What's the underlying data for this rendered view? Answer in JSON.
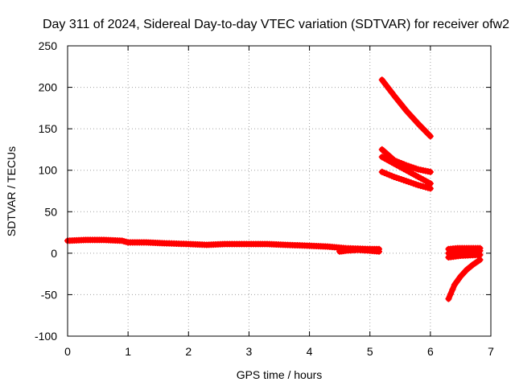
{
  "chart_data": {
    "type": "scatter",
    "title": "Day 311 of 2024, Sidereal Day-to-day VTEC variation (SDTVAR) for receiver ofw2",
    "xlabel": "GPS time / hours",
    "ylabel": "SDTVAR / TECUs",
    "xlim": [
      0,
      7
    ],
    "ylim": [
      -100,
      250
    ],
    "xticks": [
      0,
      1,
      2,
      3,
      4,
      5,
      6,
      7
    ],
    "yticks": [
      -100,
      -50,
      0,
      50,
      100,
      150,
      200,
      250
    ],
    "grid": true,
    "marker": "plus",
    "color": "#ff0000",
    "series": [
      {
        "x": [
          0.0,
          0.3,
          0.6,
          0.9,
          1.0,
          1.3,
          1.6,
          2.0,
          2.3,
          2.6,
          3.0,
          3.3,
          3.6,
          4.0,
          4.3,
          4.6,
          5.0,
          5.15
        ],
        "y": [
          15,
          16,
          16,
          15,
          13,
          13,
          12,
          11,
          10,
          11,
          11,
          11,
          10,
          9,
          8,
          6,
          5,
          5
        ]
      },
      {
        "x": [
          4.5,
          4.6,
          4.8,
          5.0,
          5.15
        ],
        "y": [
          2,
          3,
          4,
          3,
          2
        ]
      },
      {
        "x": [
          5.2,
          5.4,
          5.6,
          5.8,
          6.0
        ],
        "y": [
          209,
          190,
          172,
          156,
          141
        ]
      },
      {
        "x": [
          5.2,
          5.4,
          5.6,
          5.8,
          6.0
        ],
        "y": [
          125,
          112,
          106,
          101,
          98
        ]
      },
      {
        "x": [
          5.2,
          5.4,
          5.6,
          5.8,
          6.0
        ],
        "y": [
          116,
          108,
          100,
          92,
          84
        ]
      },
      {
        "x": [
          5.2,
          5.4,
          5.6,
          5.8,
          6.0
        ],
        "y": [
          98,
          92,
          87,
          82,
          78
        ]
      },
      {
        "x": [
          6.3,
          6.4,
          6.5,
          6.6,
          6.7,
          6.82
        ],
        "y": [
          -55,
          -38,
          -28,
          -20,
          -14,
          -8
        ]
      },
      {
        "x": [
          6.3,
          6.45,
          6.6,
          6.82
        ],
        "y": [
          0,
          2,
          3,
          3
        ]
      },
      {
        "x": [
          6.3,
          6.45,
          6.6,
          6.82
        ],
        "y": [
          5,
          6,
          6,
          6
        ]
      },
      {
        "x": [
          6.3,
          6.5,
          6.82
        ],
        "y": [
          -5,
          -3,
          -2
        ]
      }
    ]
  }
}
